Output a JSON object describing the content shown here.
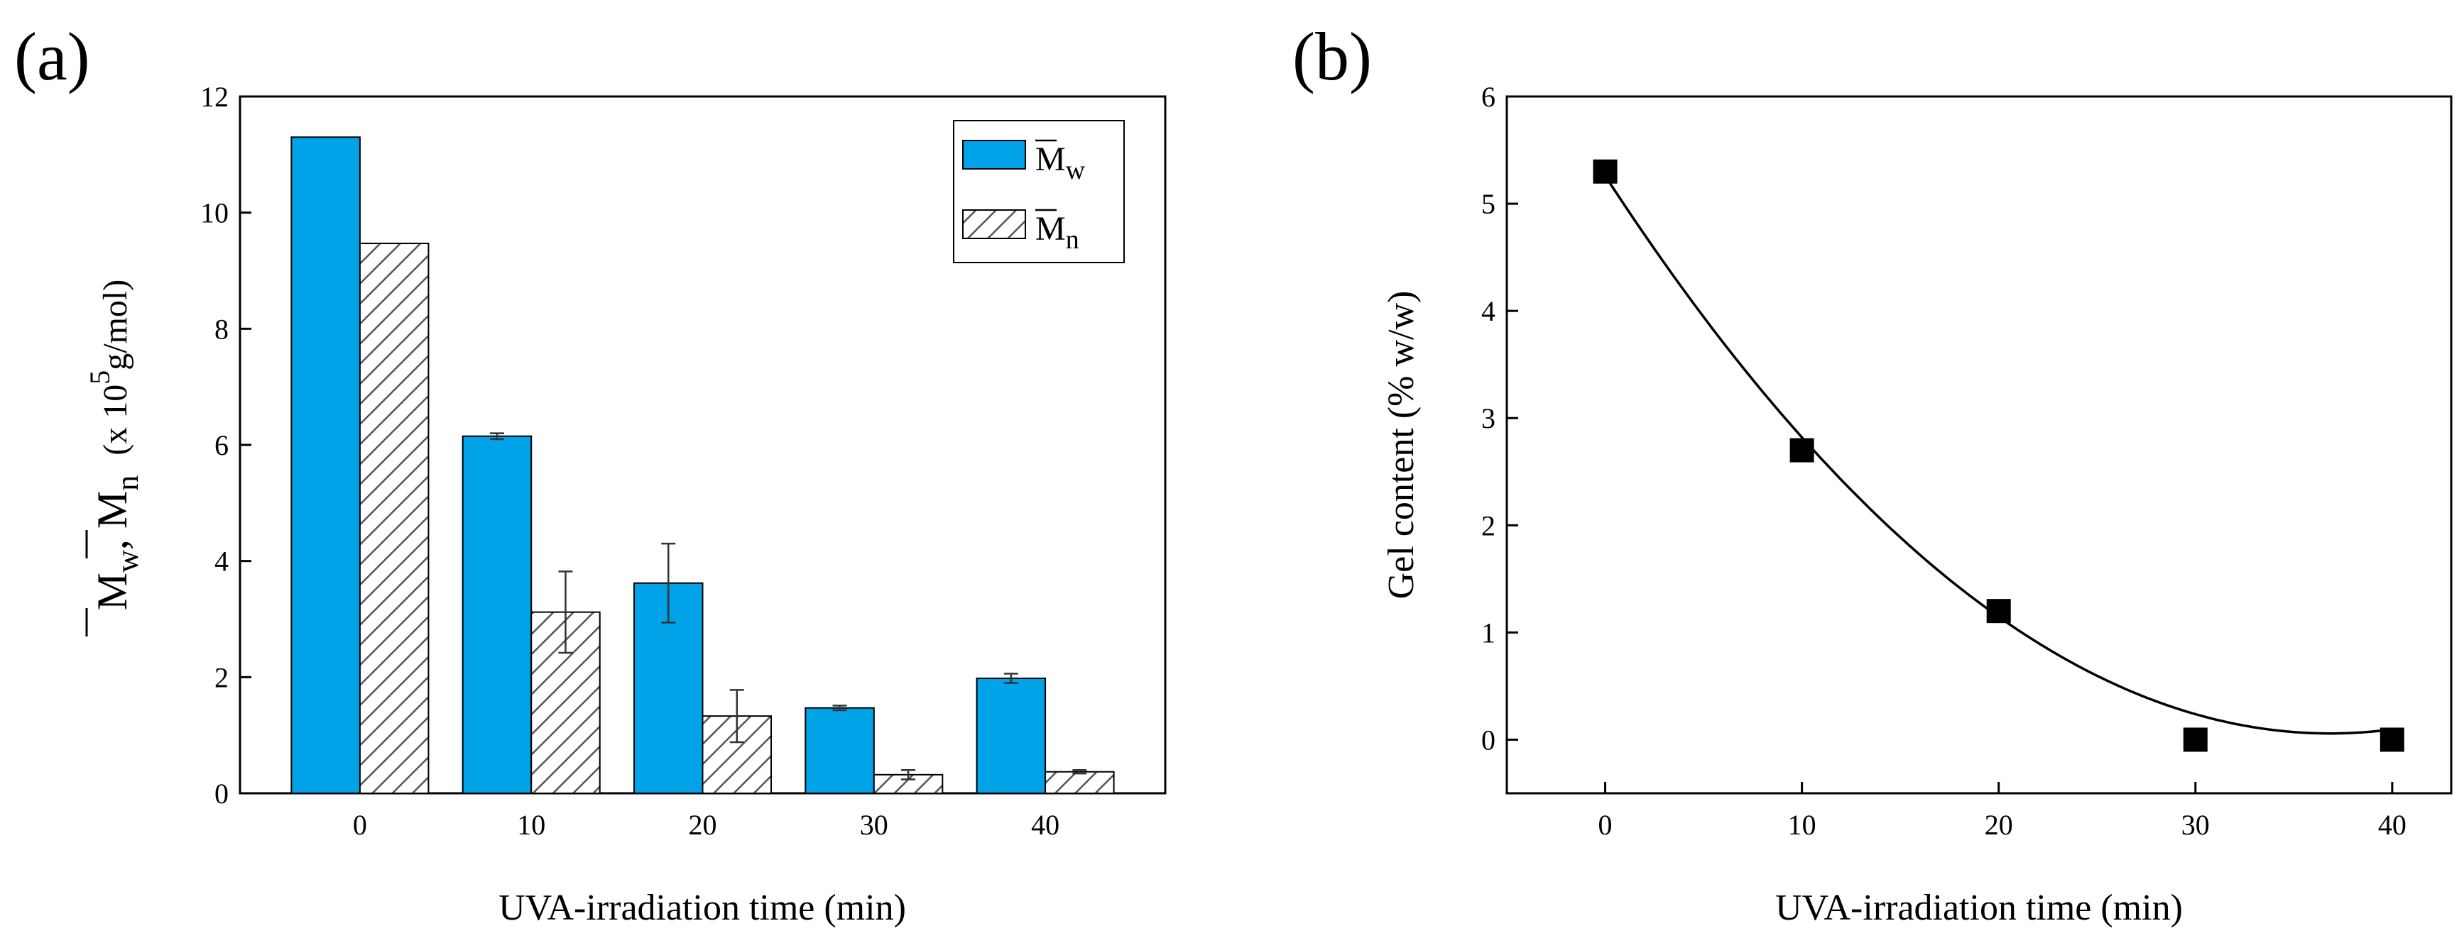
{
  "chart_data": [
    {
      "panel_label": "(a)",
      "type": "bar",
      "categories": [
        "0",
        "10",
        "20",
        "30",
        "40"
      ],
      "series": [
        {
          "name": "M̄w",
          "values": [
            11.3,
            6.15,
            3.62,
            1.47,
            1.98
          ],
          "errors": [
            0,
            0.05,
            0.68,
            0.04,
            0.08
          ],
          "color": "#00A2E8",
          "fill": "solid"
        },
        {
          "name": "M̄n",
          "values": [
            9.47,
            3.12,
            1.33,
            0.32,
            0.37
          ],
          "errors": [
            0,
            0.7,
            0.45,
            0.08,
            0.03
          ],
          "color": "#9a9a9a",
          "fill": "hatch"
        }
      ],
      "xlabel": "UVA-irradiation time (min)",
      "ylabel": "M̄w, M̄n (x 10^5 g/mol)",
      "ylabel_parts": {
        "mw": "M",
        "mw_sub": "w",
        "sep": ", ",
        "mn": "M",
        "mn_sub": "n",
        "unit_pre": "(x 10",
        "unit_exp": "5",
        "unit_post": "g/mol)"
      },
      "legend": {
        "position": "top-right",
        "items": [
          {
            "main": "M",
            "sub": "w"
          },
          {
            "main": "M",
            "sub": "n"
          }
        ]
      },
      "ylim": [
        0,
        12
      ],
      "yticks": [
        "0",
        "2",
        "4",
        "6",
        "8",
        "10",
        "12"
      ],
      "grid": false
    },
    {
      "panel_label": "(b)",
      "type": "scatter",
      "x": [
        0,
        10,
        20,
        30,
        40
      ],
      "y": [
        5.3,
        2.7,
        1.2,
        0,
        0
      ],
      "fit": {
        "type": "polynomial",
        "coefficients": [
          5.26,
          -0.2823,
          0.00383
        ]
      },
      "xlabel": "UVA-irradiation time (min)",
      "ylabel": "Gel content (% w/w)",
      "xlim": [
        -5,
        43
      ],
      "ylim": [
        -0.5,
        6
      ],
      "xticks": [
        "0",
        "10",
        "20",
        "30",
        "40"
      ],
      "yticks": [
        "0",
        "1",
        "2",
        "3",
        "4",
        "5",
        "6"
      ],
      "marker": "square",
      "grid": false
    }
  ]
}
